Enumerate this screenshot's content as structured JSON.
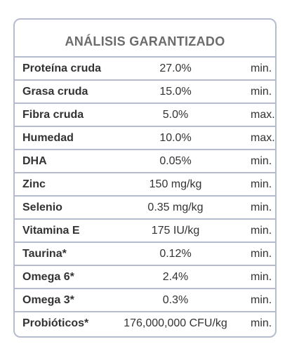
{
  "title": "ANÁLISIS GARANTIZADO",
  "rows": [
    {
      "name": "Proteína cruda",
      "value": "27.0%",
      "qualifier": "min."
    },
    {
      "name": "Grasa cruda",
      "value": "15.0%",
      "qualifier": "min."
    },
    {
      "name": "Fibra cruda",
      "value": "5.0%",
      "qualifier": "max."
    },
    {
      "name": "Humedad",
      "value": "10.0%",
      "qualifier": "max."
    },
    {
      "name": "DHA",
      "value": "0.05%",
      "qualifier": "min."
    },
    {
      "name": "Zinc",
      "value": "150 mg/kg",
      "qualifier": "min."
    },
    {
      "name": "Selenio",
      "value": "0.35 mg/kg",
      "qualifier": "min."
    },
    {
      "name": "Vitamina E",
      "value": "175 IU/kg",
      "qualifier": "min."
    },
    {
      "name": "Taurina*",
      "value": "0.12%",
      "qualifier": "min."
    },
    {
      "name": "Omega 6*",
      "value": "2.4%",
      "qualifier": "min."
    },
    {
      "name": "Omega 3*",
      "value": "0.3%",
      "qualifier": "min."
    },
    {
      "name": "Probióticos*",
      "value": "176,000,000 CFU/kg",
      "qualifier": "min."
    }
  ]
}
